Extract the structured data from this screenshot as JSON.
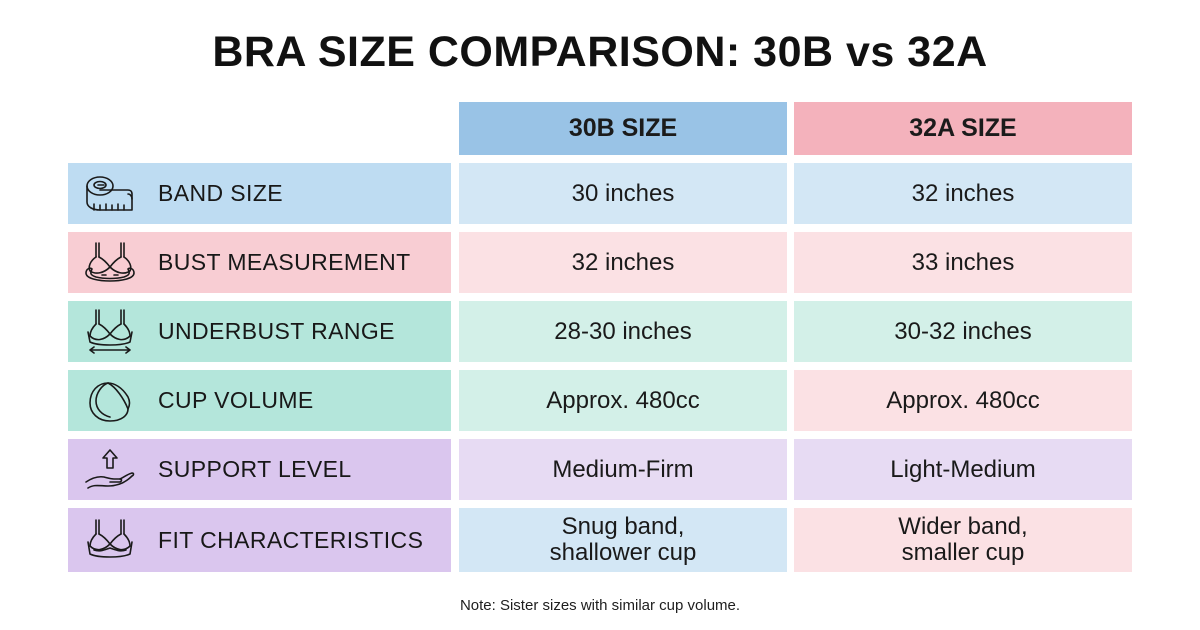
{
  "title": "BRA SIZE COMPARISON: 30B vs 32A",
  "columns": [
    {
      "label": "30B SIZE",
      "color": "#99c3e6"
    },
    {
      "label": "32A SIZE",
      "color": "#f4b2bc"
    }
  ],
  "rows": [
    {
      "label": "BAND SIZE",
      "icon": "measuring-tape-icon",
      "label_color": "#bedcf2",
      "values": [
        "30 inches",
        "32 inches"
      ],
      "value_colors": [
        "#d3e7f5",
        "#d3e7f5"
      ]
    },
    {
      "label": "BUST MEASUREMENT",
      "icon": "bra-bust-icon",
      "label_color": "#f8cdd3",
      "values": [
        "32 inches",
        "33 inches"
      ],
      "value_colors": [
        "#fbe1e4",
        "#fbe1e4"
      ]
    },
    {
      "label": "UNDERBUST RANGE",
      "icon": "bra-width-arrow-icon",
      "label_color": "#b4e6db",
      "values": [
        "28-30 inches",
        "30-32 inches"
      ],
      "value_colors": [
        "#d3f0e8",
        "#d3f0e8"
      ]
    },
    {
      "label": "CUP VOLUME",
      "icon": "bra-cup-icon",
      "label_color": "#b4e6db",
      "values": [
        "Approx. 480cc",
        "Approx. 480cc"
      ],
      "value_colors": [
        "#d3f0e8",
        "#fbe1e4"
      ]
    },
    {
      "label": "SUPPORT LEVEL",
      "icon": "hand-lift-arrow-icon",
      "label_color": "#dac6ee",
      "values": [
        "Medium-Firm",
        "Light-Medium"
      ],
      "value_colors": [
        "#e7dbf3",
        "#e7dbf3"
      ]
    },
    {
      "label": "FIT CHARACTERISTICS",
      "icon": "bra-icon",
      "label_color": "#dac6ee",
      "values": [
        "Snug band,\nshallower cup",
        "Wider band,\nsmaller cup"
      ],
      "value_colors": [
        "#d3e7f5",
        "#fbe1e4"
      ]
    }
  ],
  "note": "Note: Sister sizes with similar cup volume."
}
